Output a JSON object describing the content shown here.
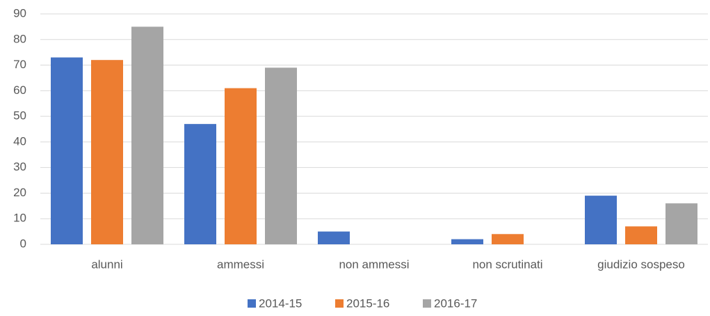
{
  "chart_data": {
    "type": "bar",
    "categories": [
      "alunni",
      "ammessi",
      "non ammessi",
      "non scrutinati",
      "giudizio sospeso"
    ],
    "series": [
      {
        "name": "2014-15",
        "color": "#4472c4",
        "values": [
          73,
          47,
          5,
          2,
          19
        ]
      },
      {
        "name": "2015-16",
        "color": "#ed7d31",
        "values": [
          72,
          61,
          0,
          4,
          7
        ]
      },
      {
        "name": "2016-17",
        "color": "#a5a5a5",
        "values": [
          85,
          69,
          0,
          0,
          16
        ]
      }
    ],
    "ylim": [
      0,
      90
    ],
    "yticks": [
      0,
      10,
      20,
      30,
      40,
      50,
      60,
      70,
      80,
      90
    ],
    "grid": true,
    "legend": "bottom"
  }
}
